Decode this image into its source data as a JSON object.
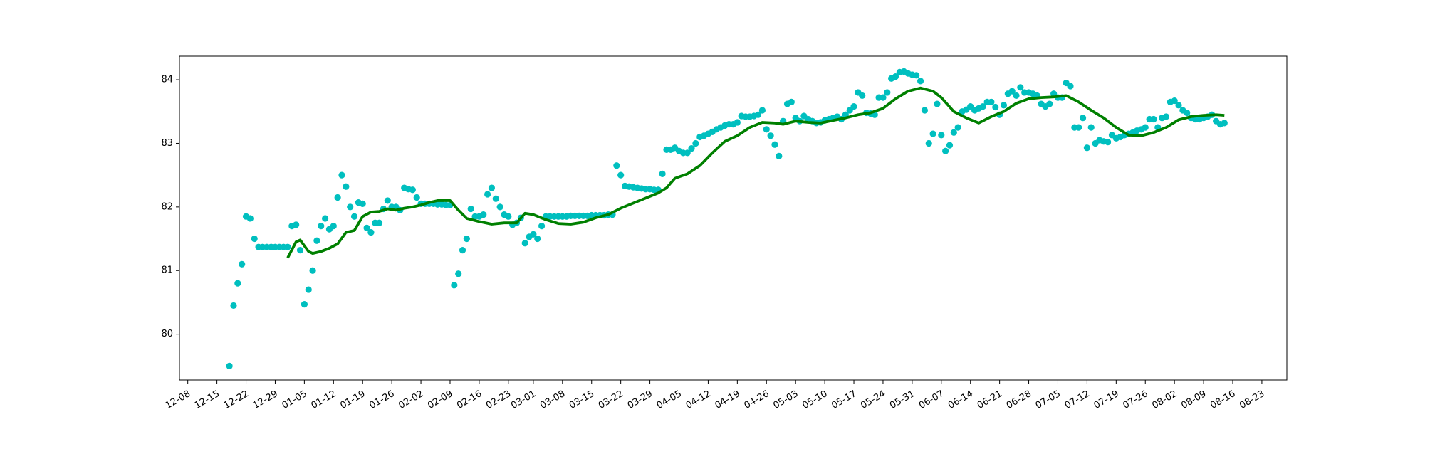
{
  "chart_data": {
    "type": "scatter",
    "xlim": [
      "12-06",
      "08-29"
    ],
    "xticks": [
      "12-08",
      "12-15",
      "12-22",
      "12-29",
      "01-05",
      "01-12",
      "01-19",
      "01-26",
      "02-02",
      "02-09",
      "02-16",
      "02-23",
      "03-01",
      "03-08",
      "03-15",
      "03-22",
      "03-29",
      "04-05",
      "04-12",
      "04-19",
      "04-26",
      "05-03",
      "05-10",
      "05-17",
      "05-24",
      "05-31",
      "06-07",
      "06-14",
      "06-21",
      "06-28",
      "07-05",
      "07-12",
      "07-19",
      "07-26",
      "08-02",
      "08-09",
      "08-16",
      "08-23"
    ],
    "ylim": [
      79.28,
      84.37
    ],
    "yticks": [
      80,
      81,
      82,
      83,
      84
    ],
    "series": [
      {
        "type": "scatter",
        "color": "#00bfbf",
        "x": [
          "12-18",
          "12-19",
          "12-20",
          "12-21",
          "12-22",
          "12-23",
          "12-24",
          "12-25",
          "12-26",
          "12-27",
          "12-28",
          "12-29",
          "12-30",
          "12-31",
          "01-01",
          "01-02",
          "01-03",
          "01-04",
          "01-05",
          "01-06",
          "01-07",
          "01-08",
          "01-09",
          "01-10",
          "01-11",
          "01-12",
          "01-13",
          "01-14",
          "01-15",
          "01-16",
          "01-17",
          "01-18",
          "01-19",
          "01-20",
          "01-21",
          "01-22",
          "01-23",
          "01-24",
          "01-25",
          "01-26",
          "01-27",
          "01-28",
          "01-29",
          "01-30",
          "01-31",
          "02-01",
          "02-02",
          "02-03",
          "02-04",
          "02-05",
          "02-06",
          "02-07",
          "02-08",
          "02-09",
          "02-10",
          "02-11",
          "02-12",
          "02-13",
          "02-14",
          "02-15",
          "02-16",
          "02-17",
          "02-18",
          "02-19",
          "02-20",
          "02-21",
          "02-22",
          "02-23",
          "02-24",
          "02-25",
          "02-26",
          "02-27",
          "02-28",
          "03-01",
          "03-02",
          "03-03",
          "03-04",
          "03-05",
          "03-06",
          "03-07",
          "03-08",
          "03-09",
          "03-10",
          "03-11",
          "03-12",
          "03-13",
          "03-14",
          "03-15",
          "03-16",
          "03-17",
          "03-18",
          "03-19",
          "03-20",
          "03-21",
          "03-22",
          "03-23",
          "03-24",
          "03-25",
          "03-26",
          "03-27",
          "03-28",
          "03-29",
          "03-30",
          "03-31",
          "04-01",
          "04-02",
          "04-03",
          "04-04",
          "04-05",
          "04-06",
          "04-07",
          "04-08",
          "04-09",
          "04-10",
          "04-11",
          "04-12",
          "04-13",
          "04-14",
          "04-15",
          "04-16",
          "04-17",
          "04-18",
          "04-19",
          "04-20",
          "04-21",
          "04-22",
          "04-23",
          "04-24",
          "04-25",
          "04-26",
          "04-27",
          "04-28",
          "04-29",
          "04-30",
          "05-01",
          "05-02",
          "05-03",
          "05-04",
          "05-05",
          "05-06",
          "05-07",
          "05-08",
          "05-09",
          "05-10",
          "05-11",
          "05-12",
          "05-13",
          "05-14",
          "05-15",
          "05-16",
          "05-17",
          "05-18",
          "05-19",
          "05-20",
          "05-21",
          "05-22",
          "05-23",
          "05-24",
          "05-25",
          "05-26",
          "05-27",
          "05-28",
          "05-29",
          "05-30",
          "05-31",
          "06-01",
          "06-02",
          "06-03",
          "06-04",
          "06-05",
          "06-06",
          "06-07",
          "06-08",
          "06-09",
          "06-10",
          "06-11",
          "06-12",
          "06-13",
          "06-14",
          "06-15",
          "06-16",
          "06-17",
          "06-18",
          "06-19",
          "06-20",
          "06-21",
          "06-22",
          "06-23",
          "06-24",
          "06-25",
          "06-26",
          "06-27",
          "06-28",
          "06-29",
          "06-30",
          "07-01",
          "07-02",
          "07-03",
          "07-04",
          "07-05",
          "07-06",
          "07-07",
          "07-08",
          "07-09",
          "07-10",
          "07-11",
          "07-12",
          "07-13",
          "07-14",
          "07-15",
          "07-16",
          "07-17",
          "07-18",
          "07-19",
          "07-20",
          "07-21",
          "07-22",
          "07-23",
          "07-24",
          "07-25",
          "07-26",
          "07-27",
          "07-28",
          "07-29",
          "07-30",
          "07-31",
          "08-01",
          "08-02",
          "08-03",
          "08-04",
          "08-05",
          "08-06",
          "08-07",
          "08-08",
          "08-09",
          "08-10",
          "08-11",
          "08-12",
          "08-13",
          "08-14"
        ],
        "values": [
          79.5,
          80.45,
          80.8,
          81.1,
          81.85,
          81.82,
          81.5,
          81.37,
          81.37,
          81.37,
          81.37,
          81.37,
          81.37,
          81.37,
          81.37,
          81.7,
          81.72,
          81.32,
          80.47,
          80.7,
          81.0,
          81.47,
          81.7,
          81.82,
          81.65,
          81.7,
          82.15,
          82.5,
          82.32,
          82.0,
          81.85,
          82.07,
          82.05,
          81.67,
          81.6,
          81.75,
          81.75,
          81.97,
          82.1,
          82.0,
          82.0,
          81.95,
          82.3,
          82.28,
          82.27,
          82.15,
          82.05,
          82.05,
          82.05,
          82.05,
          82.04,
          82.04,
          82.03,
          82.03,
          80.77,
          80.95,
          81.32,
          81.5,
          81.97,
          81.85,
          81.85,
          81.88,
          82.2,
          82.3,
          82.13,
          82.0,
          81.88,
          81.85,
          81.72,
          81.75,
          81.83,
          81.43,
          81.53,
          81.57,
          81.5,
          81.7,
          81.85,
          81.85,
          81.85,
          81.85,
          81.85,
          81.85,
          81.86,
          81.86,
          81.86,
          81.86,
          81.86,
          81.87,
          81.87,
          81.87,
          81.87,
          81.88,
          81.88,
          82.65,
          82.5,
          82.33,
          82.32,
          82.31,
          82.3,
          82.29,
          82.28,
          82.28,
          82.27,
          82.27,
          82.52,
          82.9,
          82.9,
          82.93,
          82.88,
          82.85,
          82.85,
          82.92,
          83.0,
          83.1,
          83.12,
          83.15,
          83.18,
          83.22,
          83.25,
          83.28,
          83.3,
          83.3,
          83.33,
          83.43,
          83.42,
          83.42,
          83.43,
          83.45,
          83.52,
          83.22,
          83.12,
          82.98,
          82.8,
          83.35,
          83.62,
          83.65,
          83.4,
          83.35,
          83.43,
          83.38,
          83.35,
          83.32,
          83.33,
          83.36,
          83.38,
          83.4,
          83.42,
          83.38,
          83.45,
          83.52,
          83.58,
          83.8,
          83.75,
          83.48,
          83.47,
          83.45,
          83.72,
          83.72,
          83.8,
          84.02,
          84.05,
          84.12,
          84.13,
          84.1,
          84.08,
          84.07,
          83.98,
          83.52,
          83.0,
          83.15,
          83.62,
          83.13,
          82.88,
          82.97,
          83.17,
          83.25,
          83.5,
          83.53,
          83.58,
          83.52,
          83.55,
          83.58,
          83.65,
          83.65,
          83.57,
          83.45,
          83.6,
          83.78,
          83.82,
          83.75,
          83.88,
          83.8,
          83.8,
          83.78,
          83.75,
          83.62,
          83.58,
          83.62,
          83.78,
          83.72,
          83.72,
          83.95,
          83.9,
          83.25,
          83.25,
          83.4,
          82.93,
          83.25,
          83.0,
          83.05,
          83.03,
          83.02,
          83.13,
          83.08,
          83.1,
          83.13,
          83.15,
          83.17,
          83.2,
          83.22,
          83.25,
          83.38,
          83.38,
          83.25,
          83.4,
          83.42,
          83.65,
          83.67,
          83.6,
          83.52,
          83.48,
          83.4,
          83.38,
          83.38,
          83.4,
          83.42,
          83.45,
          83.35,
          83.3,
          83.32
        ]
      },
      {
        "type": "line",
        "color": "#008000",
        "x": [
          "01-01",
          "01-03",
          "01-04",
          "01-06",
          "01-07",
          "01-09",
          "01-11",
          "01-13",
          "01-15",
          "01-17",
          "01-19",
          "01-21",
          "01-23",
          "01-25",
          "01-27",
          "01-29",
          "01-31",
          "02-02",
          "02-04",
          "02-06",
          "02-09",
          "02-11",
          "02-13",
          "02-16",
          "02-19",
          "02-22",
          "02-25",
          "02-27",
          "03-01",
          "03-04",
          "03-07",
          "03-10",
          "03-13",
          "03-16",
          "03-19",
          "03-22",
          "03-25",
          "03-28",
          "03-31",
          "04-02",
          "04-04",
          "04-07",
          "04-10",
          "04-13",
          "04-16",
          "04-19",
          "04-22",
          "04-25",
          "04-28",
          "04-30",
          "05-03",
          "05-06",
          "05-09",
          "05-12",
          "05-15",
          "05-18",
          "05-21",
          "05-24",
          "05-27",
          "05-30",
          "06-02",
          "06-05",
          "06-07",
          "06-10",
          "06-13",
          "06-16",
          "06-19",
          "06-22",
          "06-25",
          "06-28",
          "07-01",
          "07-04",
          "07-07",
          "07-10",
          "07-13",
          "07-16",
          "07-19",
          "07-22",
          "07-25",
          "07-28",
          "07-31",
          "08-03",
          "08-06",
          "08-09",
          "08-12",
          "08-14"
        ],
        "values": [
          81.2,
          81.45,
          81.48,
          81.3,
          81.27,
          81.3,
          81.35,
          81.42,
          81.6,
          81.63,
          81.85,
          81.92,
          81.93,
          81.97,
          81.95,
          81.98,
          82.0,
          82.03,
          82.07,
          82.1,
          82.1,
          81.95,
          81.82,
          81.77,
          81.73,
          81.75,
          81.75,
          81.9,
          81.88,
          81.8,
          81.74,
          81.73,
          81.76,
          81.83,
          81.88,
          81.98,
          82.06,
          82.14,
          82.22,
          82.3,
          82.45,
          82.52,
          82.65,
          82.85,
          83.03,
          83.12,
          83.25,
          83.33,
          83.32,
          83.3,
          83.35,
          83.33,
          83.32,
          83.36,
          83.4,
          83.45,
          83.48,
          83.55,
          83.7,
          83.82,
          83.87,
          83.82,
          83.72,
          83.5,
          83.4,
          83.32,
          83.42,
          83.5,
          83.63,
          83.7,
          83.72,
          83.73,
          83.75,
          83.65,
          83.52,
          83.4,
          83.25,
          83.13,
          83.12,
          83.17,
          83.25,
          83.37,
          83.42,
          83.44,
          83.45,
          83.44
        ]
      }
    ]
  }
}
